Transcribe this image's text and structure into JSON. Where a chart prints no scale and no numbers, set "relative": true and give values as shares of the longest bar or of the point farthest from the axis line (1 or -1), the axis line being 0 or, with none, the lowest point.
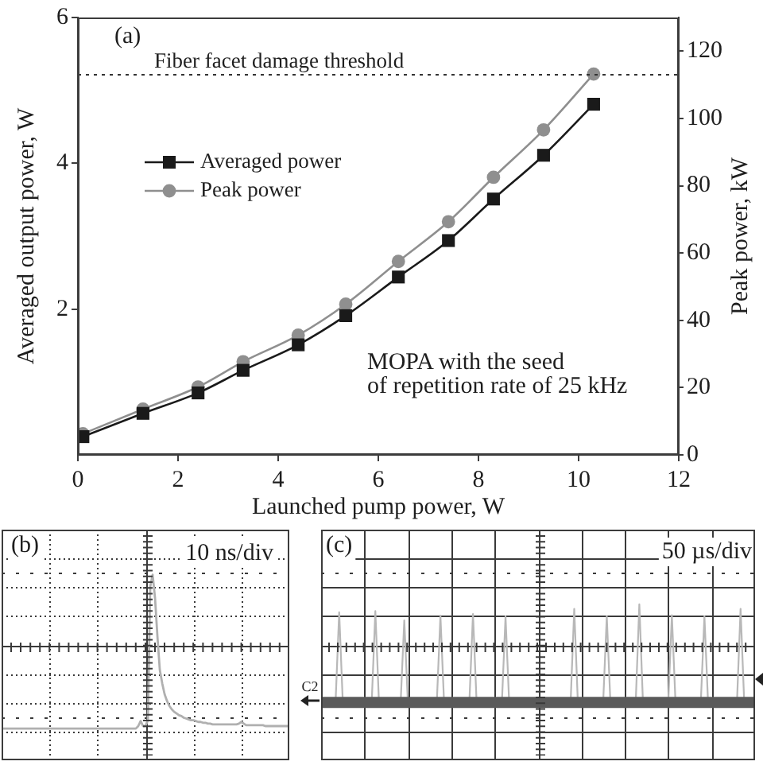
{
  "chart_data": [
    {
      "type": "line",
      "title": "(a)",
      "x": [
        0.1,
        1.3,
        2.4,
        3.3,
        4.4,
        5.35,
        6.4,
        7.4,
        8.3,
        9.3,
        10.3
      ],
      "xlim": [
        0,
        12
      ],
      "xticks": [
        0,
        2,
        4,
        6,
        8,
        10,
        12
      ],
      "ylim": [
        0,
        6
      ],
      "yticks": [
        2,
        4,
        6
      ],
      "y2lim": [
        0,
        130
      ],
      "y2ticks": [
        0,
        20,
        40,
        60,
        80,
        100,
        120
      ],
      "xlabel": "Launched pump power, W",
      "ylabel": "Averaged output power, W",
      "y2label": "Peak power, kW",
      "legend": "top left",
      "series": [
        {
          "name": "Averaged power",
          "color": "#1a1a1a",
          "marker": "square",
          "values": [
            0.25,
            0.57,
            0.85,
            1.16,
            1.51,
            1.91,
            2.44,
            2.94,
            3.51,
            4.11,
            4.81
          ]
        },
        {
          "name": "Peak power",
          "color": "#8f8f8f",
          "marker": "circle",
          "axis": "y2",
          "values": [
            6.3,
            13.6,
            20.2,
            27.7,
            35.6,
            44.8,
            57.5,
            69.3,
            82.5,
            96.6,
            113.2
          ]
        }
      ],
      "ref_lines": [
        {
          "axis": "y2",
          "value": 113,
          "label": "Fiber facet damage threshold",
          "line_style": "dotted",
          "color": "#333333"
        }
      ],
      "annotations": [
        "MOPA with the seed\nof repetition rate of 25 kHz"
      ]
    },
    {
      "type": "line",
      "title": "(b)",
      "relative": true,
      "grid": true,
      "color": "#b0b0b0",
      "categories": [
        null,
        null,
        null,
        null,
        null,
        null,
        null,
        null,
        null,
        null,
        null,
        null,
        null,
        null,
        null,
        null,
        null,
        null,
        null,
        null,
        null,
        null,
        null,
        null,
        null,
        null,
        null,
        null,
        null,
        null,
        null,
        null,
        null,
        null,
        null,
        null,
        null,
        null,
        null,
        null,
        null,
        null,
        null,
        null,
        null,
        null,
        null,
        null,
        null,
        null,
        null,
        null,
        null,
        null,
        null,
        null,
        null,
        null,
        null,
        null,
        null,
        null,
        null,
        null,
        null,
        null,
        null,
        null,
        null,
        null,
        null,
        null,
        null,
        null,
        null,
        null,
        null,
        null,
        null,
        null,
        null,
        null,
        null,
        null,
        null,
        null,
        null,
        null,
        null,
        null,
        null,
        null,
        null,
        null,
        null,
        null,
        null,
        null,
        null,
        null,
        null,
        null,
        null,
        null,
        null,
        null,
        null,
        null,
        null,
        null,
        null,
        null,
        null,
        null,
        null,
        null,
        null,
        null,
        null,
        null,
        null
      ],
      "values": [
        -1,
        -1,
        -1,
        -1,
        -1,
        -1,
        -1,
        -1,
        -1,
        -1,
        -1,
        -1,
        -1,
        -1,
        -1,
        -1,
        -1,
        -1,
        -1,
        -1,
        -1,
        -1,
        -1,
        -1,
        -1,
        -1,
        -1,
        -1,
        -1,
        -1,
        -1,
        -1,
        -1,
        -1,
        -1,
        -1,
        -1,
        -1,
        -1,
        -1,
        -1,
        -1,
        -1,
        -1,
        -1,
        -1,
        -1,
        -1,
        -1,
        -1,
        -1,
        -1,
        -1,
        -1,
        -1,
        -1,
        -1,
        -0.97,
        -0.91,
        -0.97,
        -0.97,
        -0.9,
        0.7,
        0.84,
        0.56,
        0.1,
        -0.3,
        -0.46,
        -0.59,
        -0.67,
        -0.73,
        -0.77,
        -0.8,
        -0.82,
        -0.84,
        -0.85,
        -0.87,
        -0.88,
        -0.89,
        -0.9,
        -0.9,
        -0.91,
        -0.92,
        -0.92,
        -0.93,
        -0.93,
        -0.94,
        -0.94,
        -0.95,
        -0.95,
        -0.95,
        -0.95,
        -0.95,
        -0.95,
        -0.95,
        -0.95,
        -0.95,
        -0.95,
        -0.95,
        -0.94,
        -0.92,
        -0.94,
        -0.96,
        -0.96,
        -0.96,
        -0.96,
        -0.96,
        -0.96,
        -0.96,
        -0.96,
        -0.97,
        -0.97,
        -0.97,
        -0.97,
        -0.97,
        -0.97,
        -0.97,
        -0.97,
        -0.97,
        -0.97,
        -0.97
      ],
      "annotations": [
        "10 ns/div"
      ]
    },
    {
      "type": "line",
      "title": "(c)",
      "relative": true,
      "grid": true,
      "categories": [
        null,
        null,
        null,
        null,
        null,
        null,
        null,
        null,
        null,
        null,
        null,
        null,
        null,
        null,
        null,
        null,
        null,
        null,
        null,
        null,
        null,
        null,
        null,
        null,
        null,
        null,
        null,
        null,
        null,
        null,
        null,
        null,
        null,
        null,
        null,
        null,
        null,
        null,
        null,
        null,
        null,
        null,
        null,
        null,
        null,
        null,
        null,
        null,
        null,
        null,
        null,
        null,
        null,
        null,
        null,
        null,
        null,
        null,
        null,
        null,
        null,
        null,
        null,
        null,
        null,
        null,
        null,
        null,
        null,
        null,
        null,
        null,
        null,
        null,
        null,
        null,
        null,
        null,
        null,
        null,
        null,
        null,
        null,
        null,
        null,
        null,
        null,
        null,
        null,
        null,
        null,
        null,
        null,
        null,
        null,
        null,
        null,
        null,
        null,
        null,
        null,
        null,
        null,
        null,
        null,
        null,
        null,
        null,
        null,
        null,
        null,
        null,
        null,
        null,
        null,
        null,
        null,
        null,
        null,
        null,
        null
      ],
      "series": [
        {
          "color": "#5a5a5a",
          "values": [
            -1,
            -1,
            -1,
            -1,
            -1,
            -1,
            -1,
            -1,
            -1,
            -1,
            -1,
            -1,
            -1,
            -1,
            -1,
            -1,
            -1,
            -1,
            -1,
            -1,
            -1,
            -1,
            -1,
            -1,
            -1,
            -1,
            -1,
            -1,
            -1,
            -1,
            -1,
            -1,
            -1,
            -1,
            -1,
            -1,
            -1,
            -1,
            -1,
            -1,
            -1,
            -1,
            -1,
            -1,
            -1,
            -1,
            -1,
            -1,
            -1,
            -1,
            -1,
            -1,
            -1,
            -1,
            -1,
            -1,
            -1,
            -1,
            -1,
            -1,
            -1,
            -1,
            -1,
            -1,
            -1,
            -1,
            -1,
            -1,
            -1,
            -1,
            -1,
            -1,
            -1,
            -1,
            -1,
            -1,
            -1,
            -1,
            -1,
            -1,
            -1,
            -1,
            -1,
            -1,
            -1,
            -1,
            -1,
            -1,
            -1,
            -1,
            -1,
            -1,
            -1,
            -1,
            -1,
            -1,
            -1,
            -1,
            -1,
            -1,
            -1,
            -1,
            -1,
            -1,
            -1,
            -1,
            -1,
            -1,
            -1,
            -1,
            -1,
            -1,
            -1,
            -1,
            -1,
            -1,
            -1,
            -1,
            -1,
            -1,
            -1
          ]
        },
        {
          "color": "#b8b8b8",
          "values": [
            null,
            null,
            null,
            null,
            -1,
            0.57,
            -1,
            null,
            null,
            null,
            null,
            null,
            null,
            null,
            -1,
            0.59,
            -1,
            null,
            null,
            null,
            null,
            null,
            -1,
            0.43,
            -1,
            null,
            null,
            null,
            null,
            null,
            null,
            null,
            -1,
            0.51,
            -1,
            null,
            null,
            null,
            null,
            null,
            null,
            -1,
            0.54,
            -1,
            null,
            null,
            null,
            null,
            null,
            null,
            -1,
            0.5,
            -1,
            null,
            null,
            null,
            null,
            null,
            null,
            null,
            null,
            null,
            null,
            null,
            null,
            null,
            null,
            null,
            null,
            -1,
            0.63,
            -1,
            null,
            null,
            null,
            null,
            null,
            null,
            -1,
            0.5,
            -1,
            null,
            null,
            null,
            null,
            null,
            null,
            -1,
            0.71,
            -1,
            null,
            null,
            null,
            null,
            null,
            null,
            -1,
            0.52,
            -1,
            null,
            null,
            null,
            null,
            null,
            null,
            -1,
            0.5,
            -1,
            null,
            null,
            null,
            null,
            null,
            null,
            null,
            -1,
            0.63,
            -1,
            null,
            null,
            null
          ]
        }
      ],
      "annotations": [
        "50 µs/div",
        "C2"
      ]
    }
  ]
}
